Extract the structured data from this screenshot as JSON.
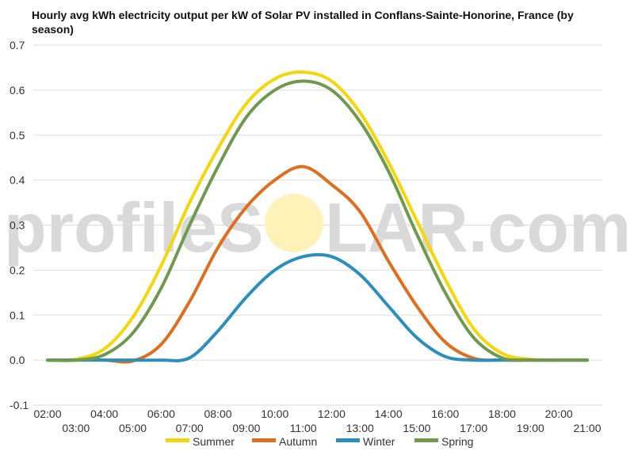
{
  "watermark": {
    "part1": "profileS",
    "part2": "LAR.com",
    "sun_color": "#fff2b8"
  },
  "chart_data": {
    "type": "line",
    "title_line1": "Hourly avg kWh electricity output per kW of Solar PV installed in Conflans-Sainte-Honorine, France (by",
    "title_line2": "season)",
    "xlabel": "",
    "ylabel": "",
    "ylim": [
      -0.1,
      0.7
    ],
    "y_ticks": [
      "-0.1",
      "0.0",
      "0.1",
      "0.2",
      "0.3",
      "0.4",
      "0.5",
      "0.6",
      "0.7"
    ],
    "x_ticks_top": [
      "02:00",
      "04:00",
      "06:00",
      "08:00",
      "10:00",
      "12:00",
      "14:00",
      "16:00",
      "18:00",
      "20:00"
    ],
    "x_ticks_bottom": [
      "03:00",
      "05:00",
      "07:00",
      "09:00",
      "11:00",
      "13:00",
      "15:00",
      "17:00",
      "19:00",
      "21:00"
    ],
    "x": [
      2,
      3,
      4,
      5,
      6,
      7,
      8,
      9,
      10,
      11,
      12,
      13,
      14,
      15,
      16,
      17,
      18,
      19,
      20,
      21
    ],
    "grid": true,
    "legend_position": "bottom",
    "series": [
      {
        "name": "Summer",
        "color": "#f5d60a",
        "values": [
          0.0,
          0.002,
          0.025,
          0.095,
          0.21,
          0.35,
          0.47,
          0.57,
          0.625,
          0.64,
          0.62,
          0.55,
          0.44,
          0.31,
          0.18,
          0.07,
          0.015,
          0.002,
          0.0,
          0.0
        ]
      },
      {
        "name": "Autumn",
        "color": "#e06e1f",
        "values": [
          0.0,
          0.0,
          0.0,
          -0.002,
          0.035,
          0.13,
          0.25,
          0.34,
          0.4,
          0.43,
          0.39,
          0.33,
          0.22,
          0.12,
          0.04,
          0.004,
          0.0,
          0.0,
          0.0,
          0.0
        ]
      },
      {
        "name": "Winter",
        "color": "#2a8fbd",
        "values": [
          0.0,
          0.0,
          0.0,
          0.0,
          0.0,
          0.005,
          0.065,
          0.14,
          0.2,
          0.23,
          0.23,
          0.19,
          0.12,
          0.05,
          0.008,
          0.0,
          0.0,
          0.0,
          0.0,
          0.0
        ]
      },
      {
        "name": "Spring",
        "color": "#6f9a4e",
        "values": [
          0.0,
          0.0,
          0.012,
          0.06,
          0.16,
          0.3,
          0.43,
          0.54,
          0.6,
          0.62,
          0.6,
          0.53,
          0.42,
          0.28,
          0.15,
          0.05,
          0.005,
          0.0,
          0.0,
          0.0
        ]
      }
    ]
  }
}
